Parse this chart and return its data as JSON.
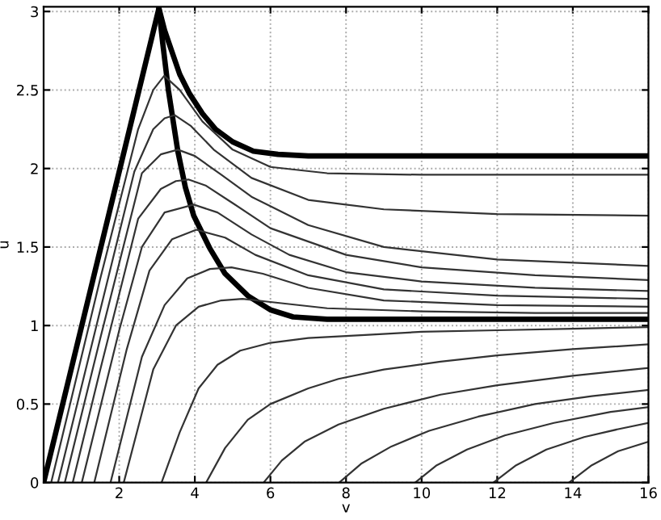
{
  "chart_data": {
    "type": "line",
    "xlabel": "v",
    "ylabel": "u",
    "xlim": [
      0,
      16
    ],
    "ylim": [
      0,
      3.03
    ],
    "xticks": [
      2,
      4,
      6,
      8,
      10,
      12,
      14,
      16
    ],
    "yticks": [
      0,
      0.5,
      1,
      1.5,
      2,
      2.5,
      3
    ],
    "grid": true,
    "line_style": "solid",
    "marker": "none",
    "series": [
      {
        "color": "#000000",
        "x": [
          0,
          3.05,
          3.2,
          3.4,
          3.6,
          3.85,
          4.2,
          4.55,
          5.0,
          5.55,
          6.2,
          7,
          16
        ],
        "values": [
          0,
          3.02,
          2.88,
          2.74,
          2.6,
          2.48,
          2.35,
          2.25,
          2.17,
          2.11,
          2.09,
          2.08,
          2.08
        ]
      },
      {
        "color": "#000000",
        "x": [
          3.05,
          3.15,
          3.3,
          3.55,
          3.75,
          3.97,
          4.4,
          4.8,
          5.4,
          6.0,
          6.6,
          7.5,
          16
        ],
        "values": [
          3.02,
          2.8,
          2.5,
          2.11,
          1.88,
          1.7,
          1.49,
          1.33,
          1.19,
          1.1,
          1.055,
          1.04,
          1.04
        ]
      },
      {
        "color": "#333333",
        "x": [
          0.2,
          1.5,
          2.5,
          2.9,
          3.19,
          3.6,
          4.2,
          5,
          6,
          7.5,
          10,
          16
        ],
        "values": [
          0,
          1.3,
          2.25,
          2.5,
          2.59,
          2.5,
          2.3,
          2.12,
          2.01,
          1.97,
          1.96,
          1.96
        ]
      },
      {
        "color": "#333333",
        "x": [
          0.38,
          1.5,
          2.4,
          2.9,
          3.2,
          3.47,
          3.9,
          4.5,
          5.5,
          7,
          9,
          12,
          16
        ],
        "values": [
          0,
          1.1,
          1.98,
          2.25,
          2.32,
          2.34,
          2.27,
          2.12,
          1.94,
          1.8,
          1.74,
          1.71,
          1.7
        ]
      },
      {
        "color": "#333333",
        "x": [
          0.56,
          1.5,
          2.6,
          3.1,
          3.55,
          4,
          4.7,
          5.5,
          7,
          9,
          12,
          16
        ],
        "values": [
          0,
          0.92,
          1.97,
          2.09,
          2.12,
          2.08,
          1.96,
          1.82,
          1.64,
          1.5,
          1.42,
          1.38
        ]
      },
      {
        "color": "#333333",
        "x": [
          0.77,
          1.5,
          2.5,
          3.1,
          3.5,
          3.83,
          4.3,
          5,
          6,
          8,
          10,
          13,
          16
        ],
        "values": [
          0,
          0.72,
          1.68,
          1.87,
          1.92,
          1.93,
          1.89,
          1.78,
          1.62,
          1.45,
          1.37,
          1.32,
          1.29
        ]
      },
      {
        "color": "#333333",
        "x": [
          1.01,
          2,
          2.6,
          3.2,
          3.97,
          4.6,
          5.5,
          6.5,
          8,
          10,
          13,
          16
        ],
        "values": [
          0,
          0.97,
          1.5,
          1.72,
          1.77,
          1.72,
          1.58,
          1.45,
          1.34,
          1.28,
          1.24,
          1.22
        ]
      },
      {
        "color": "#333333",
        "x": [
          1.34,
          2.2,
          2.8,
          3.4,
          4.04,
          4.8,
          5.6,
          7,
          9,
          12,
          16
        ],
        "values": [
          0,
          0.85,
          1.35,
          1.55,
          1.61,
          1.56,
          1.45,
          1.32,
          1.23,
          1.19,
          1.17
        ]
      },
      {
        "color": "#333333",
        "x": [
          1.77,
          2.6,
          3.2,
          3.8,
          4.4,
          4.97,
          5.8,
          7,
          9,
          12,
          16
        ],
        "values": [
          0,
          0.8,
          1.13,
          1.3,
          1.36,
          1.37,
          1.33,
          1.24,
          1.16,
          1.13,
          1.12
        ]
      },
      {
        "color": "#333333",
        "x": [
          2.12,
          2.9,
          3.5,
          4.1,
          4.7,
          5.26,
          6,
          7.5,
          10,
          13,
          16
        ],
        "values": [
          0,
          0.72,
          1.0,
          1.12,
          1.16,
          1.17,
          1.15,
          1.11,
          1.09,
          1.08,
          1.08
        ]
      },
      {
        "color": "#333333",
        "x": [
          3.12,
          3.6,
          4.1,
          4.6,
          5.2,
          6,
          7,
          8.5,
          10,
          12,
          14,
          16
        ],
        "values": [
          0,
          0.32,
          0.6,
          0.75,
          0.84,
          0.89,
          0.92,
          0.94,
          0.96,
          0.97,
          0.98,
          0.99
        ]
      },
      {
        "color": "#333333",
        "x": [
          4.3,
          4.8,
          5.4,
          6,
          7,
          7.8,
          9,
          10.5,
          12,
          14,
          16
        ],
        "values": [
          0,
          0.22,
          0.4,
          0.5,
          0.6,
          0.66,
          0.72,
          0.77,
          0.81,
          0.85,
          0.88
        ]
      },
      {
        "color": "#333333",
        "x": [
          5.82,
          6.3,
          6.9,
          7.8,
          9,
          10.5,
          12,
          14,
          16
        ],
        "values": [
          0,
          0.14,
          0.26,
          0.37,
          0.47,
          0.56,
          0.62,
          0.68,
          0.73
        ]
      },
      {
        "color": "#333333",
        "x": [
          7.82,
          8.4,
          9.2,
          10.2,
          11.5,
          13,
          14.5,
          16
        ],
        "values": [
          0,
          0.12,
          0.23,
          0.33,
          0.42,
          0.5,
          0.55,
          0.59
        ]
      },
      {
        "color": "#333333",
        "x": [
          9.83,
          10.4,
          11.2,
          12.2,
          13.5,
          15,
          16
        ],
        "values": [
          0,
          0.11,
          0.21,
          0.3,
          0.38,
          0.45,
          0.48
        ]
      },
      {
        "color": "#333333",
        "x": [
          11.9,
          12.5,
          13.3,
          14.3,
          15.2,
          16
        ],
        "values": [
          0,
          0.11,
          0.21,
          0.29,
          0.34,
          0.38
        ]
      },
      {
        "color": "#333333",
        "x": [
          13.9,
          14.5,
          15.2,
          16
        ],
        "values": [
          0,
          0.11,
          0.2,
          0.26
        ]
      }
    ]
  }
}
